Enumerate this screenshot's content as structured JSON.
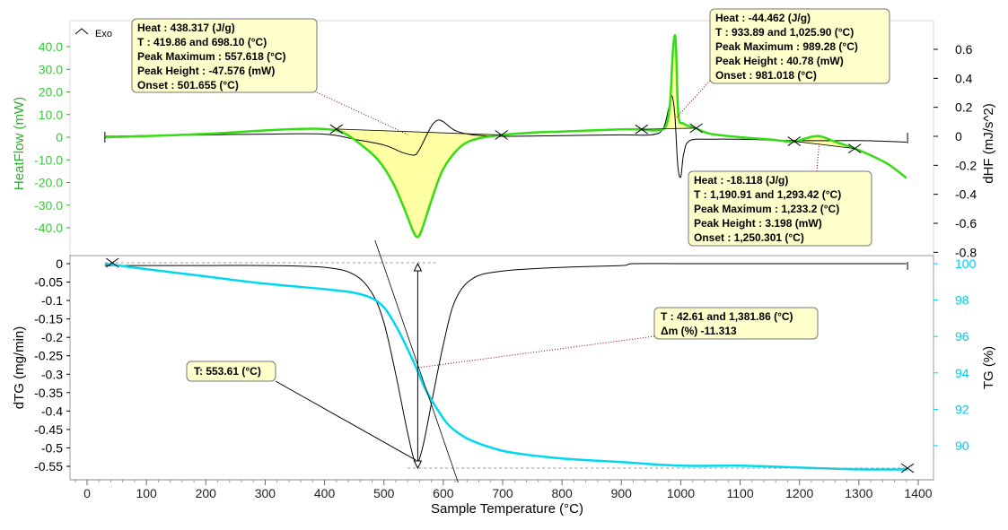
{
  "chart_data": {
    "type": "line",
    "xlabel": "Sample Temperature (°C)",
    "xlim": [
      -30,
      1420
    ],
    "xticks": [
      0,
      100,
      200,
      300,
      400,
      500,
      600,
      700,
      800,
      900,
      1000,
      1100,
      1200,
      1300,
      1400
    ],
    "exo_label": "Exo",
    "top_panel": {
      "left_axis": {
        "label": "HeatFlow (mW)",
        "color": "#33cc33",
        "ticks": [
          "40.0",
          "30.0",
          "20.0",
          "10.0",
          "0",
          "-10.0",
          "-20.0",
          "-30.0",
          "-40.0"
        ],
        "ylim": [
          -45,
          45
        ]
      },
      "right_axis": {
        "label": "dHF (mJ/s^2)",
        "color": "#000000",
        "ticks": [
          "0.6",
          "0.4",
          "0.2",
          "0",
          "-0.2",
          "-0.4",
          "-0.6",
          "-0.8"
        ],
        "ylim": [
          -0.8,
          0.7
        ]
      },
      "series": [
        {
          "color": "#33dd11",
          "axis": "left",
          "x": [
            30,
            100,
            200,
            300,
            360,
            400,
            430,
            460,
            490,
            515,
            535,
            550,
            557.6,
            565,
            580,
            600,
            630,
            660,
            700,
            750,
            800,
            850,
            900,
            930,
            960,
            975,
            982,
            986,
            989.3,
            992,
            996,
            1005,
            1025,
            1050,
            1100,
            1150,
            1190,
            1210,
            1233,
            1260,
            1293,
            1320,
            1350,
            1380
          ],
          "y": [
            0,
            0.5,
            1.5,
            3,
            3.7,
            3.6,
            2.2,
            -3,
            -10,
            -20,
            -32,
            -42,
            -44,
            -40,
            -28,
            -14,
            -4,
            -0.5,
            1,
            2,
            2.5,
            3,
            3.5,
            3.5,
            3,
            5,
            15,
            35,
            44.5,
            40,
            10,
            6,
            4,
            1.5,
            0,
            -1,
            -2,
            -0.5,
            0.5,
            -2,
            -5,
            -8,
            -12,
            -18
          ]
        },
        {
          "color": "#000000",
          "axis": "right",
          "x": [
            30,
            100,
            200,
            300,
            400,
            450,
            500,
            530,
            550,
            557,
            565,
            580,
            590,
            600,
            620,
            650,
            700,
            800,
            900,
            950,
            970,
            980,
            985,
            990,
            995,
            1000,
            1005,
            1015,
            1050,
            1100,
            1200,
            1300,
            1380
          ],
          "y": [
            0,
            0.005,
            0.01,
            0.015,
            0.015,
            -0.02,
            -0.06,
            -0.11,
            -0.13,
            -0.11,
            -0.05,
            0.07,
            0.11,
            0.1,
            0.04,
            0.01,
            0,
            0.005,
            0.01,
            0.01,
            0.05,
            0.2,
            0.28,
            0.15,
            -0.2,
            -0.28,
            -0.12,
            -0.03,
            -0.02,
            -0.02,
            -0.03,
            -0.03,
            -0.04
          ]
        }
      ],
      "annotations": [
        {
          "lines": [
            "Heat :  438.317 (J/g)",
            "T : 419.86 and 698.10 (°C)",
            "Peak Maximum :  557.618 (°C)",
            "Peak Height :  -47.576 (mW)",
            "Onset :  501.655 (°C)"
          ]
        },
        {
          "lines": [
            "Heat :  -44.462 (J/g)",
            "T : 933.89 and 1,025.90 (°C)",
            "Peak Maximum :  989.28 (°C)",
            "Peak Height :  40.78 (mW)",
            "Onset :  981.018 (°C)"
          ]
        },
        {
          "lines": [
            "Heat :  -18.118 (J/g)",
            "T : 1,190.91 and 1,293.42 (°C)",
            "Peak Maximum :  1,233.2 (°C)",
            "Peak Height :  3.198 (mW)",
            "Onset :  1,250.301 (°C)"
          ]
        }
      ]
    },
    "bottom_panel": {
      "left_axis": {
        "label": "dTG (mg/min)",
        "color": "#000000",
        "ticks": [
          "0",
          "-0.05",
          "-0.1",
          "-0.15",
          "-0.2",
          "-0.25",
          "-0.3",
          "-0.35",
          "-0.4",
          "-0.45",
          "-0.5",
          "-0.55"
        ],
        "ylim": [
          -0.58,
          0.02
        ]
      },
      "right_axis": {
        "label": "TG (%)",
        "color": "#00ccee",
        "ticks": [
          "100",
          "98",
          "96",
          "94",
          "92",
          "90"
        ],
        "ylim": [
          88.2,
          100.3
        ]
      },
      "series": [
        {
          "color": "#00d8f0",
          "axis": "right",
          "x": [
            30,
            100,
            200,
            300,
            400,
            450,
            480,
            500,
            520,
            540,
            557,
            570,
            590,
            610,
            640,
            680,
            720,
            800,
            900,
            1000,
            1100,
            1200,
            1300,
            1382
          ],
          "y": [
            100,
            99.7,
            99.3,
            98.9,
            98.6,
            98.4,
            98.1,
            97.6,
            96.6,
            95.3,
            94.1,
            93.1,
            92,
            91.1,
            90.4,
            89.9,
            89.6,
            89.3,
            89.1,
            88.9,
            88.9,
            88.8,
            88.7,
            88.7
          ]
        },
        {
          "color": "#000000",
          "axis": "left",
          "x": [
            30,
            100,
            200,
            300,
            400,
            450,
            480,
            500,
            520,
            540,
            553.6,
            565,
            580,
            600,
            620,
            650,
            700,
            800,
            900,
            920,
            1000,
            1100,
            1200,
            1300,
            1380
          ],
          "y": [
            -0.005,
            -0.005,
            -0.005,
            -0.005,
            -0.01,
            -0.03,
            -0.08,
            -0.16,
            -0.3,
            -0.46,
            -0.54,
            -0.5,
            -0.38,
            -0.22,
            -0.1,
            -0.04,
            -0.02,
            -0.01,
            -0.005,
            0,
            0,
            0,
            0,
            0,
            0
          ]
        }
      ],
      "annotations": [
        {
          "lines": [
            "T : 42.61 and 1,381.86 (°C)",
            "Δm (%) -11.313"
          ]
        },
        {
          "lines": [
            "T: 553.61 (°C)"
          ]
        }
      ]
    }
  }
}
